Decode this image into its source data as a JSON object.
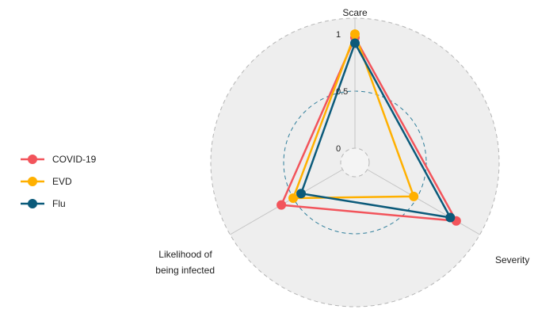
{
  "chart_data": {
    "type": "radar",
    "axes": [
      "Scare",
      "Severity",
      "Likelihood of being infected"
    ],
    "axis_label_lines": [
      [
        "Scare"
      ],
      [
        "Severity"
      ],
      [
        "Likelihood of",
        "being infected"
      ]
    ],
    "radial_ticks": [
      "0",
      "0.5",
      "1"
    ],
    "radial_range": [
      0,
      1
    ],
    "series": [
      {
        "name": "COVID-19",
        "color": "#f2545b",
        "values": [
          0.97,
          0.9,
          0.62
        ]
      },
      {
        "name": "EVD",
        "color": "#ffb000",
        "values": [
          1.0,
          0.47,
          0.5
        ]
      },
      {
        "name": "Flu",
        "color": "#0b5a7a",
        "values": [
          0.92,
          0.84,
          0.42
        ]
      }
    ],
    "legend_position": "left",
    "grid": true
  }
}
